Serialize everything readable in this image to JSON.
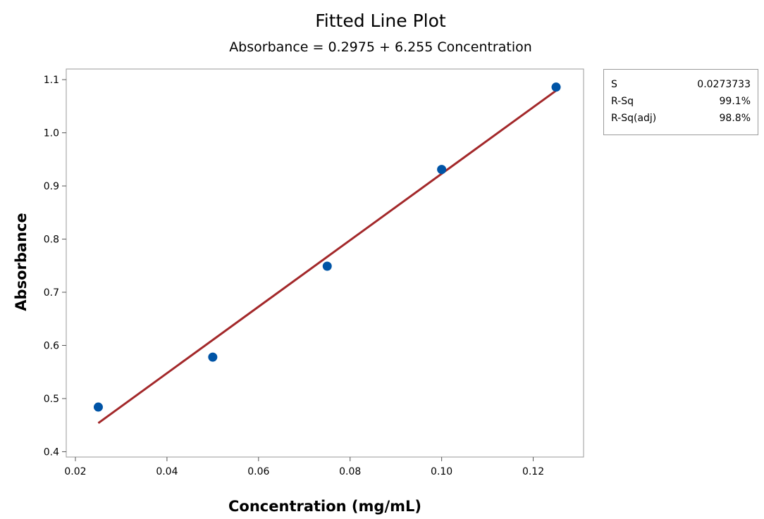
{
  "chart_data": {
    "type": "scatter",
    "title": "Fitted Line Plot",
    "subtitle": "Absorbance = 0.2975 + 6.255 Concentration",
    "xlabel": "Concentration (mg/mL)",
    "ylabel": "Absorbance",
    "xlim": [
      0.018,
      0.131
    ],
    "ylim": [
      0.39,
      1.12
    ],
    "x_ticks": [
      0.02,
      0.04,
      0.06,
      0.08,
      0.1,
      0.12
    ],
    "x_tick_labels": [
      "0.02",
      "0.04",
      "0.06",
      "0.08",
      "0.10",
      "0.12"
    ],
    "y_ticks": [
      0.4,
      0.5,
      0.6,
      0.7,
      0.8,
      0.9,
      1.0,
      1.1
    ],
    "y_tick_labels": [
      "0.4",
      "0.5",
      "0.6",
      "0.7",
      "0.8",
      "0.9",
      "1.0",
      "1.1"
    ],
    "grid": false,
    "points": {
      "x": [
        0.025,
        0.05,
        0.075,
        0.1,
        0.125
      ],
      "y": [
        0.484,
        0.578,
        0.749,
        0.931,
        1.086
      ],
      "color": "#0054a6"
    },
    "fit_line": {
      "intercept": 0.2975,
      "slope": 6.255,
      "x_range": [
        0.025,
        0.125
      ],
      "color": "#a3282a"
    },
    "stats": [
      {
        "label": "S",
        "value": "0.0273733"
      },
      {
        "label": "R-Sq",
        "value": "99.1%"
      },
      {
        "label": "R-Sq(adj)",
        "value": "98.8%"
      }
    ]
  }
}
